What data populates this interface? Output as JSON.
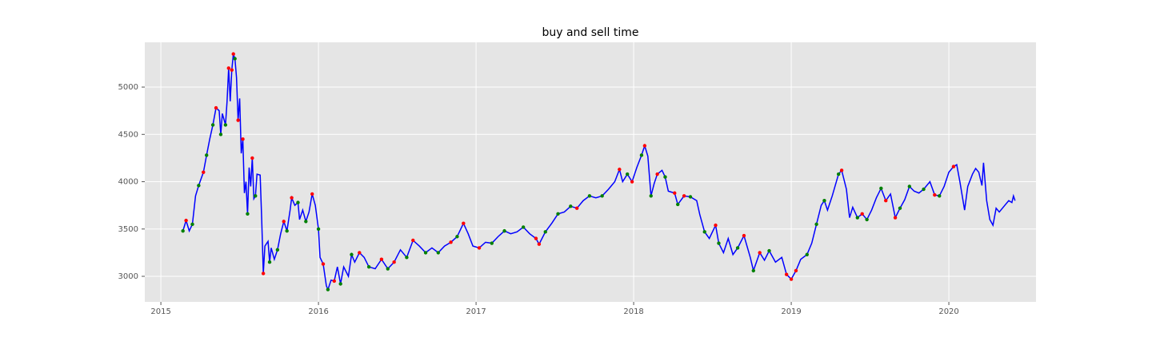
{
  "chart_data": {
    "type": "line",
    "title": "buy and sell time",
    "xlim": [
      2014.898,
      2020.553
    ],
    "xticks": [
      2015,
      2016,
      2017,
      2018,
      2019,
      2020
    ],
    "ylim": [
      2730,
      5473
    ],
    "yticks": [
      3000,
      3500,
      4000,
      4500,
      5000
    ],
    "grid": true,
    "background": "#e5e5e5",
    "grid_color": "#ffffff",
    "series": [
      {
        "style": "line",
        "color": "#0000ff",
        "x": [
          2015.14,
          2015.16,
          2015.18,
          2015.2,
          2015.22,
          2015.24,
          2015.27,
          2015.29,
          2015.31,
          2015.33,
          2015.35,
          2015.37,
          2015.38,
          2015.39,
          2015.41,
          2015.42,
          2015.43,
          2015.44,
          2015.45,
          2015.46,
          2015.47,
          2015.48,
          2015.49,
          2015.5,
          2015.51,
          2015.52,
          2015.53,
          2015.54,
          2015.55,
          2015.56,
          2015.57,
          2015.58,
          2015.59,
          2015.6,
          2015.61,
          2015.63,
          2015.64,
          2015.65,
          2015.66,
          2015.68,
          2015.69,
          2015.7,
          2015.72,
          2015.74,
          2015.76,
          2015.78,
          2015.8,
          2015.82,
          2015.83,
          2015.85,
          2015.87,
          2015.88,
          2015.9,
          2015.92,
          2015.94,
          2015.96,
          2015.98,
          2016.0,
          2016.01,
          2016.03,
          2016.05,
          2016.06,
          2016.08,
          2016.1,
          2016.12,
          2016.14,
          2016.16,
          2016.19,
          2016.21,
          2016.23,
          2016.26,
          2016.29,
          2016.32,
          2016.36,
          2016.4,
          2016.44,
          2016.48,
          2016.52,
          2016.56,
          2016.6,
          2016.64,
          2016.68,
          2016.72,
          2016.76,
          2016.8,
          2016.84,
          2016.88,
          2016.92,
          2016.95,
          2016.98,
          2017.02,
          2017.06,
          2017.1,
          2017.14,
          2017.18,
          2017.22,
          2017.26,
          2017.3,
          2017.34,
          2017.38,
          2017.4,
          2017.44,
          2017.48,
          2017.52,
          2017.56,
          2017.6,
          2017.64,
          2017.68,
          2017.72,
          2017.76,
          2017.8,
          2017.84,
          2017.88,
          2017.91,
          2017.93,
          2017.96,
          2017.99,
          2018.02,
          2018.05,
          2018.07,
          2018.09,
          2018.11,
          2018.13,
          2018.15,
          2018.18,
          2018.2,
          2018.22,
          2018.26,
          2018.28,
          2018.32,
          2018.36,
          2018.4,
          2018.42,
          2018.45,
          2018.48,
          2018.52,
          2018.54,
          2018.57,
          2018.6,
          2018.63,
          2018.66,
          2018.7,
          2018.74,
          2018.76,
          2018.8,
          2018.83,
          2018.86,
          2018.9,
          2018.94,
          2018.97,
          2019.0,
          2019.03,
          2019.06,
          2019.1,
          2019.13,
          2019.16,
          2019.19,
          2019.21,
          2019.23,
          2019.26,
          2019.3,
          2019.32,
          2019.35,
          2019.37,
          2019.39,
          2019.42,
          2019.45,
          2019.48,
          2019.51,
          2019.54,
          2019.57,
          2019.6,
          2019.63,
          2019.66,
          2019.69,
          2019.72,
          2019.75,
          2019.78,
          2019.81,
          2019.84,
          2019.88,
          2019.91,
          2019.94,
          2019.97,
          2020.0,
          2020.03,
          2020.05,
          2020.07,
          2020.1,
          2020.12,
          2020.15,
          2020.17,
          2020.19,
          2020.21,
          2020.22,
          2020.24,
          2020.26,
          2020.28,
          2020.3,
          2020.32,
          2020.35,
          2020.38,
          2020.4,
          2020.41,
          2020.42
        ],
        "values": [
          3480,
          3590,
          3480,
          3550,
          3850,
          3960,
          4100,
          4280,
          4450,
          4600,
          4780,
          4750,
          4500,
          4720,
          4600,
          4850,
          5200,
          4850,
          5180,
          5350,
          5300,
          5100,
          4650,
          4880,
          4300,
          4450,
          3880,
          4000,
          3660,
          4150,
          3950,
          4250,
          3820,
          3850,
          4080,
          4070,
          3590,
          3030,
          3320,
          3370,
          3150,
          3300,
          3180,
          3280,
          3450,
          3580,
          3480,
          3700,
          3830,
          3750,
          3780,
          3600,
          3700,
          3580,
          3680,
          3870,
          3750,
          3500,
          3200,
          3130,
          2900,
          2860,
          2960,
          2950,
          3100,
          2920,
          3100,
          3000,
          3230,
          3150,
          3250,
          3200,
          3100,
          3080,
          3180,
          3080,
          3150,
          3280,
          3200,
          3380,
          3320,
          3250,
          3300,
          3250,
          3320,
          3360,
          3420,
          3560,
          3450,
          3320,
          3300,
          3360,
          3350,
          3420,
          3480,
          3450,
          3470,
          3520,
          3450,
          3400,
          3340,
          3470,
          3560,
          3660,
          3680,
          3740,
          3720,
          3800,
          3850,
          3830,
          3850,
          3920,
          4000,
          4130,
          4000,
          4080,
          4000,
          4150,
          4280,
          4380,
          4270,
          3850,
          3980,
          4080,
          4120,
          4050,
          3900,
          3880,
          3760,
          3850,
          3840,
          3800,
          3650,
          3470,
          3400,
          3540,
          3350,
          3250,
          3400,
          3230,
          3300,
          3430,
          3200,
          3060,
          3250,
          3170,
          3270,
          3150,
          3200,
          3020,
          2970,
          3060,
          3180,
          3230,
          3350,
          3550,
          3750,
          3800,
          3700,
          3850,
          4080,
          4120,
          3920,
          3620,
          3730,
          3620,
          3660,
          3600,
          3700,
          3830,
          3930,
          3800,
          3870,
          3620,
          3720,
          3810,
          3950,
          3900,
          3880,
          3920,
          4000,
          3860,
          3850,
          3950,
          4100,
          4160,
          4180,
          4000,
          3700,
          3950,
          4080,
          4140,
          4100,
          3960,
          4200,
          3800,
          3600,
          3540,
          3720,
          3680,
          3740,
          3800,
          3780,
          3850,
          3800
        ]
      },
      {
        "style": "scatter",
        "color": "#008000",
        "x": [
          2015.14,
          2015.2,
          2015.24,
          2015.29,
          2015.33,
          2015.38,
          2015.41,
          2015.47,
          2015.55,
          2015.6,
          2015.69,
          2015.74,
          2015.8,
          2015.87,
          2015.92,
          2016.0,
          2016.06,
          2016.14,
          2016.21,
          2016.32,
          2016.44,
          2016.56,
          2016.68,
          2016.76,
          2016.88,
          2017.1,
          2017.18,
          2017.3,
          2017.44,
          2017.52,
          2017.6,
          2017.72,
          2017.8,
          2017.96,
          2018.05,
          2018.11,
          2018.2,
          2018.28,
          2018.36,
          2018.45,
          2018.54,
          2018.66,
          2018.76,
          2018.86,
          2019.1,
          2019.16,
          2019.21,
          2019.3,
          2019.42,
          2019.48,
          2019.57,
          2019.69,
          2019.75,
          2019.84,
          2019.94
        ],
        "values": [
          3480,
          3550,
          3960,
          4280,
          4600,
          4500,
          4600,
          5300,
          3660,
          3850,
          3150,
          3280,
          3480,
          3780,
          3580,
          3500,
          2860,
          2920,
          3230,
          3100,
          3080,
          3200,
          3250,
          3250,
          3420,
          3350,
          3480,
          3520,
          3470,
          3660,
          3740,
          3850,
          3850,
          4080,
          4280,
          3850,
          4050,
          3760,
          3840,
          3470,
          3350,
          3300,
          3060,
          3270,
          3230,
          3550,
          3800,
          4080,
          3620,
          3600,
          3930,
          3720,
          3950,
          3920,
          3850
        ]
      },
      {
        "style": "scatter",
        "color": "#ff0000",
        "x": [
          2015.16,
          2015.27,
          2015.35,
          2015.43,
          2015.45,
          2015.46,
          2015.49,
          2015.52,
          2015.58,
          2015.65,
          2015.78,
          2015.83,
          2015.96,
          2016.03,
          2016.1,
          2016.26,
          2016.4,
          2016.48,
          2016.6,
          2016.84,
          2016.92,
          2017.02,
          2017.38,
          2017.4,
          2017.64,
          2017.91,
          2017.99,
          2018.07,
          2018.15,
          2018.26,
          2018.32,
          2018.52,
          2018.7,
          2018.8,
          2018.97,
          2019.0,
          2019.03,
          2019.32,
          2019.45,
          2019.6,
          2019.66,
          2019.91,
          2020.03
        ],
        "values": [
          3590,
          4100,
          4780,
          5200,
          5180,
          5350,
          4650,
          4450,
          4250,
          3030,
          3580,
          3830,
          3870,
          3130,
          2950,
          3250,
          3180,
          3150,
          3380,
          3360,
          3560,
          3300,
          3400,
          3340,
          3720,
          4130,
          4000,
          4380,
          4080,
          3880,
          3850,
          3540,
          3430,
          3250,
          3020,
          2970,
          3060,
          4120,
          3660,
          3800,
          3620,
          3860,
          4160
        ]
      }
    ]
  }
}
